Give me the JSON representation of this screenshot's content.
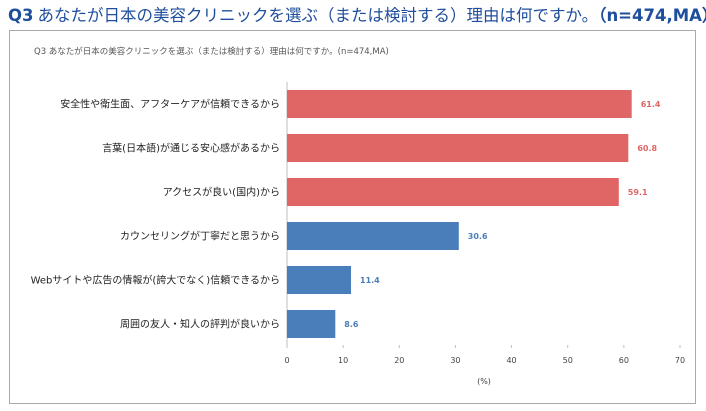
{
  "header": {
    "q_no": "Q3",
    "question": "あなたが日本の美容クリニックを選ぶ（または検討する）理由は何ですか。",
    "sample": "（n=474,MA）"
  },
  "colors": {
    "heading": "#1f4e9c",
    "red_bar": "#e06666",
    "blue_bar": "#4a7ebb",
    "red_label": "#e06666",
    "blue_label": "#4a7ebb"
  },
  "chart_data": {
    "type": "bar",
    "orientation": "horizontal",
    "title": "Q3 あなたが日本の美容クリニックを選ぶ（または検討する）理由は何ですか。(n=474,MA)",
    "categories": [
      "安全性や衛生面、アフターケアが信頼できるから",
      "言葉(日本語)が通じる安心感があるから",
      "アクセスが良い(国内)から",
      "カウンセリングが丁寧だと思うから",
      "Webサイトや広告の情報が(誇大でなく)信頼できるから",
      "周囲の友人・知人の評判が良いから"
    ],
    "values": [
      61.4,
      60.8,
      59.1,
      30.6,
      11.4,
      8.6
    ],
    "value_labels": [
      "61.4",
      "60.8",
      "59.1",
      "30.6",
      "11.4",
      "8.6"
    ],
    "bar_colors": [
      "#e06666",
      "#e06666",
      "#e06666",
      "#4a7ebb",
      "#4a7ebb",
      "#4a7ebb"
    ],
    "xlim": [
      0,
      70
    ],
    "xticks": [
      0,
      10,
      20,
      30,
      40,
      50,
      60,
      70
    ],
    "xlabel": "(%)",
    "ylabel": "",
    "grid": false
  }
}
